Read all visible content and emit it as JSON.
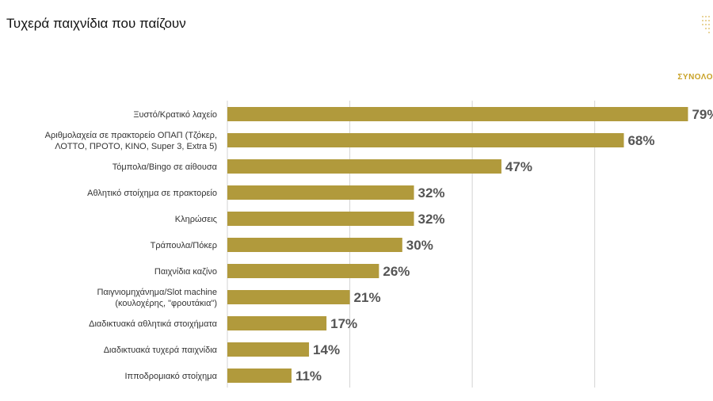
{
  "chart_data": {
    "type": "bar",
    "orientation": "horizontal",
    "title": "Τυχερά παιχνίδια που παίζουν",
    "series_name": "ΣΥΝΟΛΟ",
    "categories": [
      [
        "Ξυστό/Κρατικό λαχείο"
      ],
      [
        "Αριθμολαχεία σε πρακτορείο ΟΠΑΠ (Τζόκερ,",
        "ΛΟΤΤΟ, ΠΡΟΤΟ, ΚΙΝΟ, Super 3, Extra 5)"
      ],
      [
        "Τόμπολα/Bingo σε αίθουσα"
      ],
      [
        "Αθλητικό στοίχημα σε πρακτορείο"
      ],
      [
        "Κληρώσεις"
      ],
      [
        "Τράπουλα/Πόκερ"
      ],
      [
        "Παιχνίδια καζίνο"
      ],
      [
        "Παιγνιομηχάνημα/Slot machine",
        "(κουλοχέρης, \"φρουτάκια\")"
      ],
      [
        "Διαδικτυακά αθλητικά στοιχήματα"
      ],
      [
        "Διαδικτυακά τυχερά παιχνίδια"
      ],
      [
        "Ιπποδρομιακό στοίχημα"
      ]
    ],
    "values": [
      79,
      68,
      47,
      32,
      32,
      30,
      26,
      21,
      17,
      14,
      11
    ],
    "value_suffix": "%",
    "xlim": [
      0,
      100
    ],
    "grid": true,
    "legend": "top-right",
    "bar_color": "#b19a3c"
  }
}
